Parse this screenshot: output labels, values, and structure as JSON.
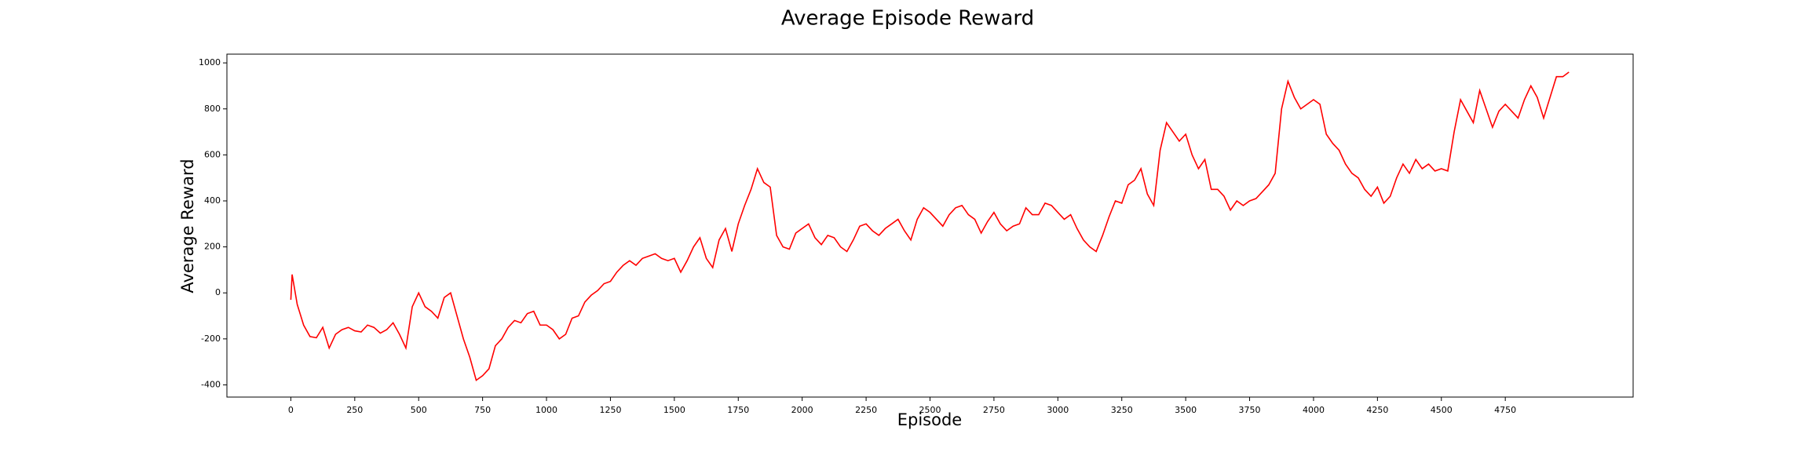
{
  "chart_data": {
    "type": "line",
    "title": "Average Episode Reward",
    "x_label": "Episode",
    "y_label": "Average Reward",
    "x": [
      0,
      5,
      25,
      50,
      75,
      100,
      125,
      150,
      175,
      200,
      225,
      250,
      275,
      300,
      325,
      350,
      375,
      400,
      425,
      450,
      475,
      500,
      525,
      550,
      575,
      600,
      625,
      650,
      675,
      700,
      725,
      750,
      775,
      800,
      825,
      850,
      875,
      900,
      925,
      950,
      975,
      1000,
      1025,
      1050,
      1075,
      1100,
      1125,
      1150,
      1175,
      1200,
      1225,
      1250,
      1275,
      1300,
      1325,
      1350,
      1375,
      1400,
      1425,
      1450,
      1475,
      1500,
      1525,
      1550,
      1575,
      1600,
      1625,
      1650,
      1675,
      1700,
      1725,
      1750,
      1775,
      1800,
      1825,
      1850,
      1875,
      1900,
      1925,
      1950,
      1975,
      2000,
      2025,
      2050,
      2075,
      2100,
      2125,
      2150,
      2175,
      2200,
      2225,
      2250,
      2275,
      2300,
      2325,
      2350,
      2375,
      2400,
      2425,
      2450,
      2475,
      2500,
      2525,
      2550,
      2575,
      2600,
      2625,
      2650,
      2675,
      2700,
      2725,
      2750,
      2775,
      2800,
      2825,
      2850,
      2875,
      2900,
      2925,
      2950,
      2975,
      3000,
      3025,
      3050,
      3075,
      3100,
      3125,
      3150,
      3175,
      3200,
      3225,
      3250,
      3275,
      3300,
      3325,
      3350,
      3375,
      3400,
      3425,
      3450,
      3475,
      3500,
      3525,
      3550,
      3575,
      3600,
      3625,
      3650,
      3675,
      3700,
      3725,
      3750,
      3775,
      3800,
      3825,
      3850,
      3875,
      3900,
      3925,
      3950,
      3975,
      4000,
      4025,
      4050,
      4075,
      4100,
      4125,
      4150,
      4175,
      4200,
      4225,
      4250,
      4275,
      4300,
      4325,
      4350,
      4375,
      4400,
      4425,
      4450,
      4475,
      4500,
      4525,
      4550,
      4575,
      4600,
      4625,
      4650,
      4675,
      4700,
      4725,
      4750,
      4775,
      4800,
      4825,
      4850,
      4875,
      4900,
      4925,
      4950,
      4975,
      4999
    ],
    "series": [
      {
        "name": "Average Reward",
        "color": "#ff0000",
        "values": [
          -30,
          80,
          -50,
          -140,
          -190,
          -195,
          -150,
          -240,
          -180,
          -160,
          -150,
          -165,
          -170,
          -140,
          -150,
          -175,
          -160,
          -130,
          -180,
          -240,
          -60,
          0,
          -60,
          -80,
          -110,
          -20,
          0,
          -100,
          -200,
          -280,
          -380,
          -360,
          -330,
          -230,
          -200,
          -150,
          -120,
          -130,
          -90,
          -80,
          -140,
          -140,
          -160,
          -200,
          -180,
          -110,
          -100,
          -40,
          -10,
          10,
          40,
          50,
          90,
          120,
          140,
          120,
          150,
          160,
          170,
          150,
          140,
          150,
          90,
          140,
          200,
          240,
          150,
          110,
          230,
          280,
          180,
          300,
          380,
          450,
          540,
          480,
          460,
          250,
          200,
          190,
          260,
          280,
          300,
          240,
          210,
          250,
          240,
          200,
          180,
          230,
          290,
          300,
          270,
          250,
          280,
          300,
          320,
          270,
          230,
          320,
          370,
          350,
          320,
          290,
          340,
          370,
          380,
          340,
          320,
          260,
          310,
          350,
          300,
          270,
          290,
          300,
          370,
          340,
          340,
          390,
          380,
          350,
          320,
          340,
          280,
          230,
          200,
          180,
          250,
          330,
          400,
          390,
          470,
          490,
          540,
          430,
          380,
          620,
          740,
          700,
          660,
          690,
          600,
          540,
          580,
          450,
          450,
          420,
          360,
          400,
          380,
          400,
          410,
          440,
          470,
          520,
          800,
          920,
          850,
          800,
          820,
          840,
          820,
          690,
          650,
          620,
          560,
          520,
          500,
          450,
          420,
          460,
          390,
          420,
          500,
          560,
          520,
          580,
          540,
          560,
          530,
          540,
          530,
          700,
          840,
          790,
          740,
          880,
          800,
          720,
          790,
          820,
          790,
          760,
          840,
          900,
          850,
          760,
          850,
          940,
          940,
          960
        ]
      }
    ],
    "xlim": [
      -250,
      5250
    ],
    "ylim": [
      -453,
      1038
    ],
    "xticks": [
      0,
      250,
      500,
      750,
      1000,
      1250,
      1500,
      1750,
      2000,
      2250,
      2500,
      2750,
      3000,
      3250,
      3500,
      3750,
      4000,
      4250,
      4500,
      4750
    ],
    "yticks": [
      -400,
      -200,
      0,
      200,
      400,
      600,
      800,
      1000
    ],
    "grid": false
  }
}
